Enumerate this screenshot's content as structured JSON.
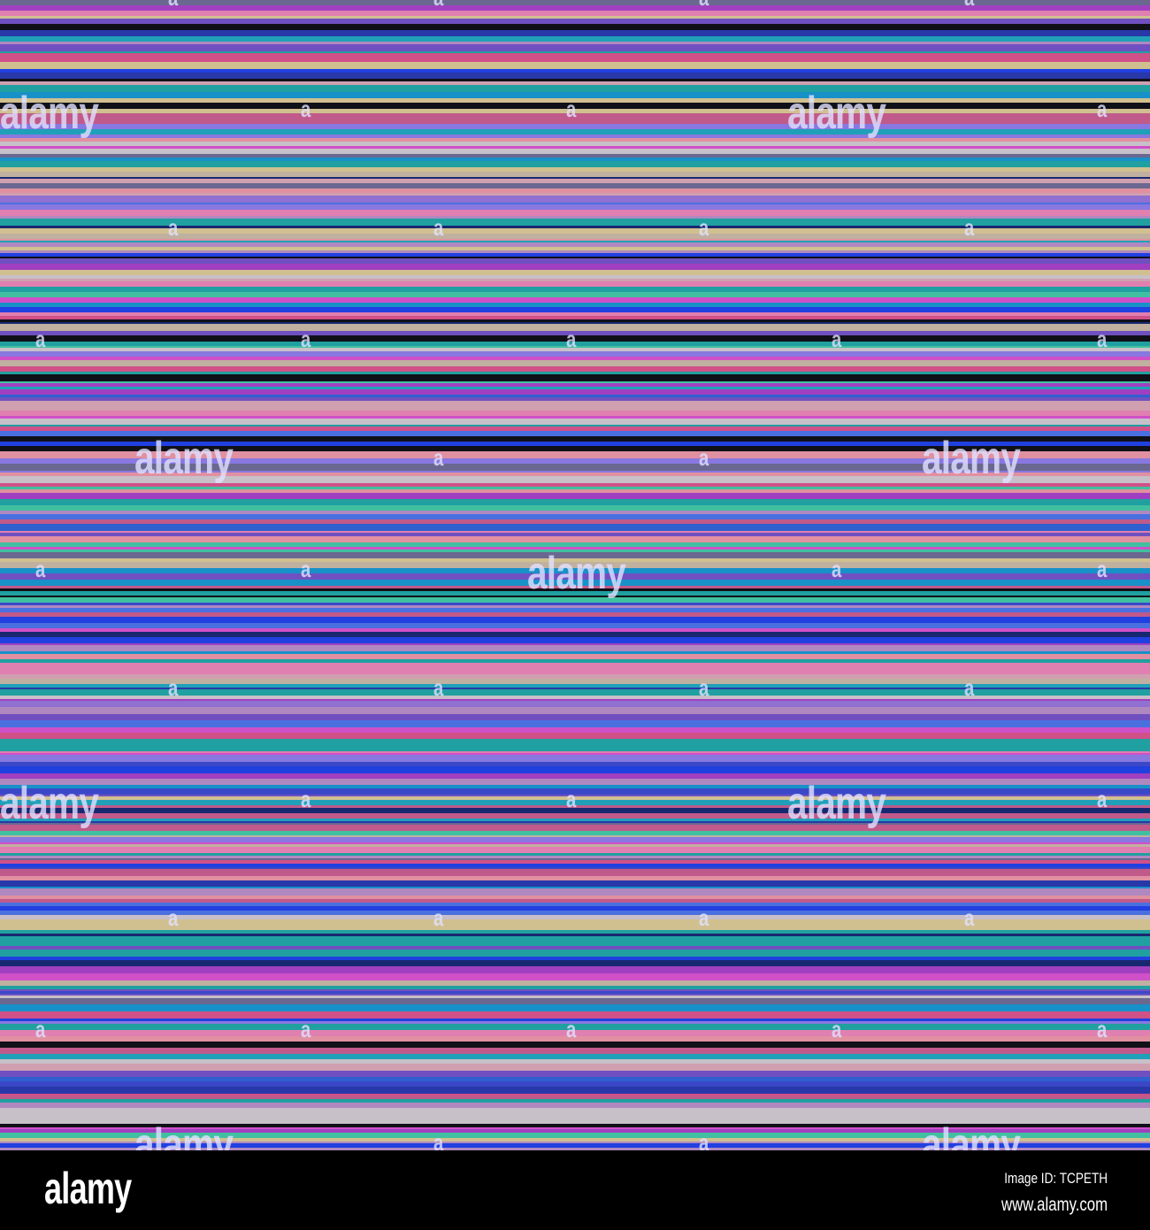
{
  "image": {
    "watermark_text": "alamy",
    "watermark_small": "a",
    "palette": [
      "#c8c0c8",
      "#3a48c8",
      "#c05a8a",
      "#d050c8",
      "#2838a8",
      "#1890c8",
      "#20a0b8",
      "#6a6890",
      "#101018",
      "#d05088",
      "#8878e0",
      "#2040e0",
      "#20a0a0",
      "#d0a0b0",
      "#182870",
      "#9070d0",
      "#4a70e0",
      "#e080b0",
      "#c0b0a0",
      "#3060d0",
      "#b088c0",
      "#7050c0",
      "#d0c090",
      "#40c0a0",
      "#e090a0",
      "#a040c0"
    ]
  },
  "footer": {
    "logo": "alamy",
    "image_id": "Image ID: TCPETH",
    "website": "www.alamy.com"
  }
}
